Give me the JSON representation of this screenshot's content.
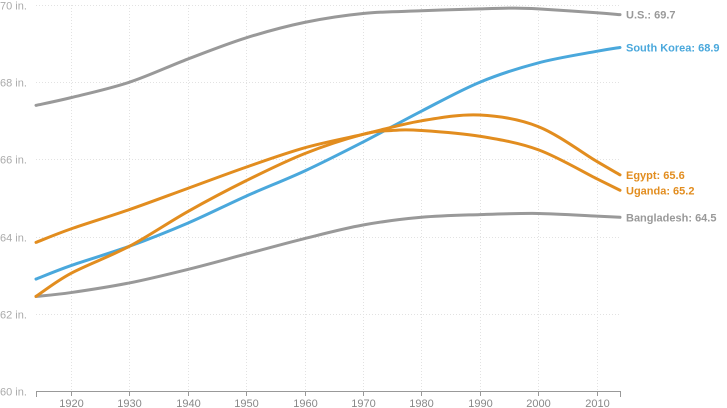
{
  "chart_data": {
    "type": "line",
    "title": "",
    "xlabel": "",
    "ylabel": "",
    "x_ticks": [
      1920,
      1930,
      1940,
      1950,
      1960,
      1970,
      1980,
      1990,
      2000,
      2010
    ],
    "y_ticks": [
      60,
      62,
      64,
      66,
      68,
      70
    ],
    "y_tick_labels": [
      "60 in.",
      "62 in.",
      "64 in.",
      "66 in.",
      "68 in.",
      "70 in."
    ],
    "xlim": [
      1914,
      2014
    ],
    "ylim": [
      60,
      70
    ],
    "grid": true,
    "series": [
      {
        "name": "U.S.",
        "label": "U.S.: 69.7",
        "color": "#999999",
        "x": [
          1914,
          1920,
          1930,
          1940,
          1950,
          1960,
          1970,
          1980,
          1990,
          1996,
          2000,
          2010,
          2014
        ],
        "values": [
          67.4,
          67.6,
          68.0,
          68.6,
          69.15,
          69.55,
          69.78,
          69.85,
          69.9,
          69.92,
          69.9,
          69.8,
          69.75
        ]
      },
      {
        "name": "South Korea",
        "label": "South Korea: 68.9",
        "color": "#4aa8dc",
        "x": [
          1914,
          1920,
          1930,
          1940,
          1950,
          1960,
          1970,
          1980,
          1990,
          2000,
          2010,
          2014
        ],
        "values": [
          62.9,
          63.25,
          63.75,
          64.35,
          65.05,
          65.7,
          66.45,
          67.25,
          68.0,
          68.5,
          68.8,
          68.9
        ]
      },
      {
        "name": "Egypt",
        "label": "Egypt: 65.6",
        "color": "#e28d1f",
        "x": [
          1914,
          1920,
          1930,
          1940,
          1950,
          1960,
          1970,
          1980,
          1990,
          2000,
          2010,
          2014
        ],
        "values": [
          63.85,
          64.2,
          64.7,
          65.25,
          65.8,
          66.3,
          66.65,
          67.0,
          67.15,
          66.85,
          65.95,
          65.6
        ]
      },
      {
        "name": "Uganda",
        "label": "Uganda: 65.2",
        "color": "#e28d1f",
        "x": [
          1914,
          1920,
          1930,
          1940,
          1950,
          1960,
          1970,
          1975,
          1980,
          1990,
          2000,
          2010,
          2014
        ],
        "values": [
          62.45,
          63.05,
          63.75,
          64.65,
          65.45,
          66.15,
          66.65,
          66.75,
          66.75,
          66.6,
          66.25,
          65.5,
          65.2
        ]
      },
      {
        "name": "Bangladesh",
        "label": "Bangladesh: 64.5",
        "color": "#999999",
        "x": [
          1914,
          1920,
          1930,
          1940,
          1950,
          1960,
          1970,
          1980,
          1990,
          2000,
          2010,
          2014
        ],
        "values": [
          62.45,
          62.55,
          62.8,
          63.15,
          63.55,
          63.95,
          64.3,
          64.5,
          64.57,
          64.6,
          64.53,
          64.5
        ]
      }
    ]
  }
}
